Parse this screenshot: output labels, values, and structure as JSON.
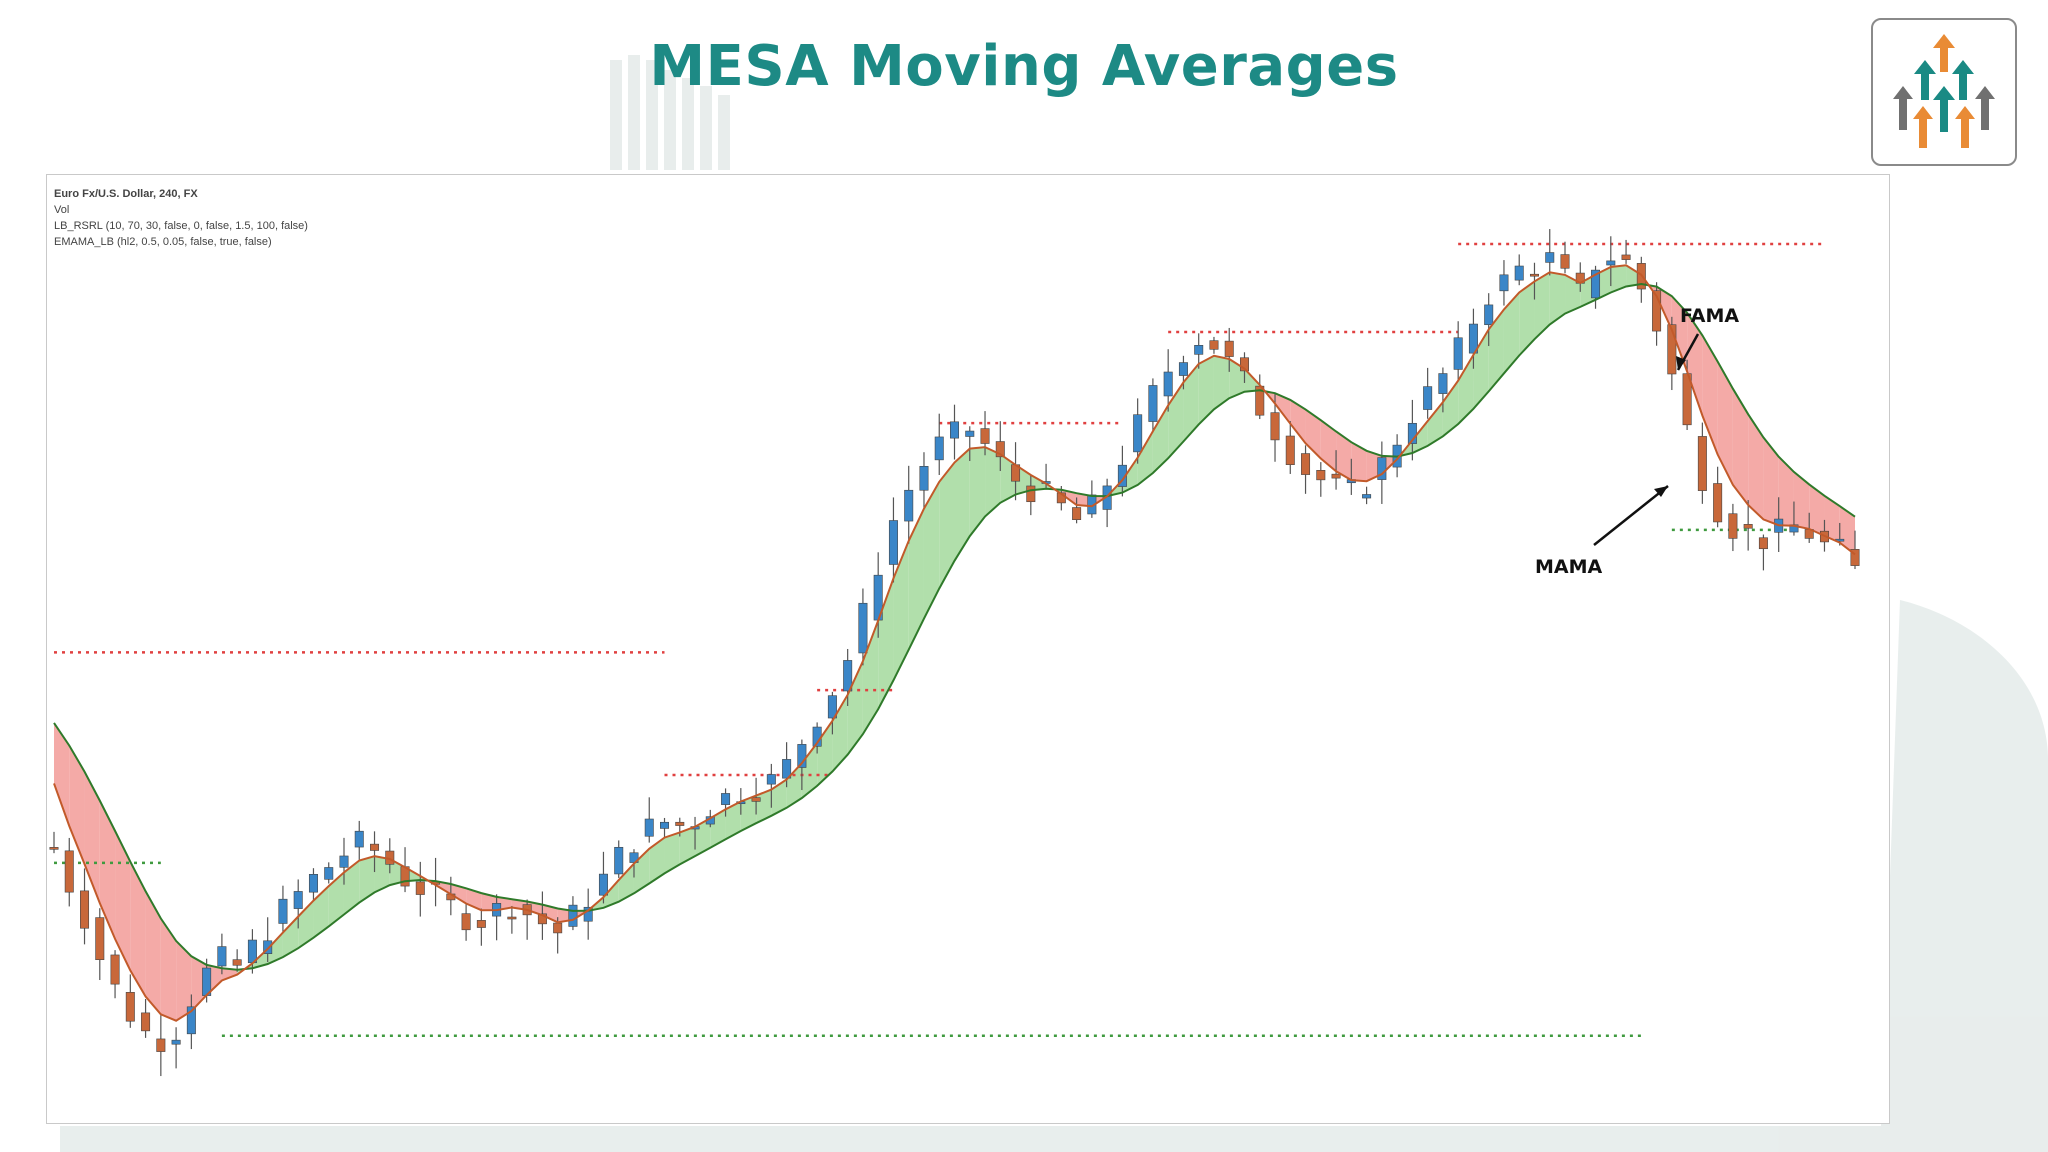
{
  "slide": {
    "title": "MESA  Moving Averages",
    "logo_icon": "arrows-up-logo-icon"
  },
  "chart_data": {
    "type": "candlestick",
    "legend_lines": [
      "Euro Fx/U.S. Dollar, 240, FX",
      "Vol",
      "LB_RSRL (10, 70, 30, false, 0, false, 1.5, 100, false)",
      "EMAMA_LB (hl2, 0.5, 0.05, false, true, false)"
    ],
    "series": [
      {
        "name": "MAMA",
        "color": "#c25a2a"
      },
      {
        "name": "FAMA",
        "color": "#2f7a2a"
      }
    ],
    "annotations": [
      {
        "label": "FAMA"
      },
      {
        "label": "MAMA"
      }
    ],
    "colors": {
      "up_candle": "#3a86c8",
      "down_candle": "#c8683a",
      "bull_fill": "#a8dba2",
      "bear_fill": "#f3a19d",
      "resistance_dots": "#e04040",
      "support_dots": "#3f9a3f",
      "title": "#1d8a85"
    },
    "price_path": [
      0.62,
      0.5,
      0.4,
      0.27,
      0.17,
      0.09,
      0.03,
      0.01,
      0.04,
      0.14,
      0.22,
      0.26,
      0.24,
      0.3,
      0.36,
      0.42,
      0.47,
      0.52,
      0.56,
      0.6,
      0.63,
      0.61,
      0.57,
      0.52,
      0.49,
      0.46,
      0.43,
      0.4,
      0.39,
      0.42,
      0.44,
      0.41,
      0.38,
      0.35,
      0.4,
      0.46,
      0.52,
      0.59,
      0.64,
      0.68,
      0.7,
      0.69,
      0.71,
      0.75,
      0.78,
      0.8,
      0.81,
      0.83,
      0.88,
      0.96,
      1.04,
      1.12,
      1.22,
      1.36,
      1.52,
      1.66,
      1.76,
      1.84,
      1.9,
      1.93,
      1.95,
      1.9,
      1.84,
      1.79,
      1.76,
      1.74,
      1.7,
      1.66,
      1.7,
      1.78,
      1.86,
      1.96,
      2.06,
      2.14,
      2.2,
      2.24,
      2.22,
      2.16,
      2.1,
      2.02,
      1.95,
      1.88,
      1.82,
      1.79,
      1.76,
      1.75,
      1.78,
      1.84,
      1.92,
      2.0,
      2.06,
      2.12,
      2.2,
      2.3,
      2.38,
      2.42,
      2.46,
      2.47,
      2.49,
      2.43,
      2.38,
      2.48,
      2.5,
      2.48,
      2.4,
      2.28,
      2.12,
      1.95,
      1.8,
      1.7,
      1.64,
      1.62,
      1.6,
      1.62,
      1.64,
      1.62,
      1.58,
      1.56,
      1.5
    ],
    "resistance_levels": [
      {
        "level": 1.24,
        "from": 0,
        "to": 40
      },
      {
        "level": 0.85,
        "from": 40,
        "to": 51
      },
      {
        "level": 1.12,
        "from": 50,
        "to": 55
      },
      {
        "level": 1.97,
        "from": 58,
        "to": 70
      },
      {
        "level": 2.26,
        "from": 73,
        "to": 92
      },
      {
        "level": 2.54,
        "from": 92,
        "to": 116
      }
    ],
    "support_levels": [
      {
        "level": 0.57,
        "from": 0,
        "to": 7
      },
      {
        "level": 0.02,
        "from": 11,
        "to": 104
      },
      {
        "level": 1.63,
        "from": 106,
        "to": 114
      }
    ]
  }
}
